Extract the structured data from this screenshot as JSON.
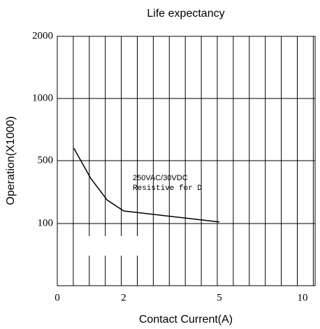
{
  "chart_data": {
    "type": "line",
    "title": "Life expectancy",
    "x_label": "Contact Current(A)",
    "y_label": "Operation(X1000)",
    "x": [
      0.5,
      1,
      1.5,
      2,
      5
    ],
    "series": [
      {
        "name": "250VAC/30VDC",
        "color": "#000000",
        "values": [
          600,
          390,
          250,
          180,
          110
        ]
      }
    ],
    "annotations": [
      "250VAC/30VDC",
      "Resistive for D"
    ],
    "xlim": [
      0,
      10
    ],
    "xticks": [
      0,
      2,
      5,
      10
    ],
    "ylim": [
      0,
      2000
    ],
    "yticks": [
      100,
      500,
      1000,
      2000
    ],
    "grid": true
  }
}
